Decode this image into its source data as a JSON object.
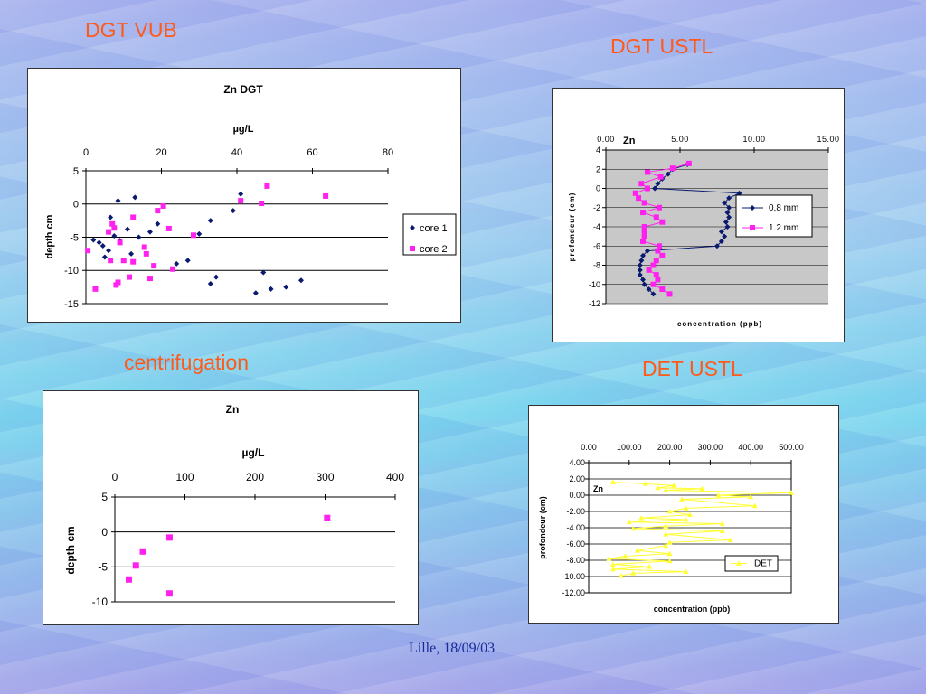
{
  "headings": {
    "dgt_vub": "DGT VUB",
    "dgt_ustl": "DGT USTL",
    "centrifugation": "centrifugation",
    "det_ustl": "DET USTL"
  },
  "footer": "Lille, 18/09/03",
  "colors": {
    "core1": "#0a1a6e",
    "core2": "#ff22ee",
    "det": "#ffff33",
    "heading": "#ff5a1a"
  },
  "chart_data": [
    {
      "id": "zn-dgt-vub",
      "type": "scatter",
      "title": "Zn DGT",
      "xlabel": "µg/L",
      "ylabel": "depth cm",
      "xlim": [
        0,
        80
      ],
      "ylim": [
        -15,
        5
      ],
      "x_ticks": [
        "0",
        "20",
        "40",
        "60",
        "80"
      ],
      "y_ticks": [
        "5",
        "0",
        "-5",
        "-10",
        "-15"
      ],
      "x_axis_position": "top",
      "legend": "right",
      "series": [
        {
          "name": "core 1",
          "marker": "diamond",
          "points": [
            [
              2,
              -5.4
            ],
            [
              3.5,
              -5.8
            ],
            [
              4.5,
              -6.3
            ],
            [
              5,
              -8
            ],
            [
              6,
              -7
            ],
            [
              6.5,
              -2
            ],
            [
              7.5,
              -4.8
            ],
            [
              8.5,
              0.5
            ],
            [
              9,
              -5.5
            ],
            [
              11,
              -3.8
            ],
            [
              12,
              -7.5
            ],
            [
              13,
              1
            ],
            [
              14,
              -5
            ],
            [
              17,
              -4.2
            ],
            [
              19,
              -3
            ],
            [
              24,
              -9
            ],
            [
              27,
              -8.5
            ],
            [
              30,
              -4.5
            ],
            [
              33,
              -2.5
            ],
            [
              33,
              -12
            ],
            [
              34.5,
              -11
            ],
            [
              39,
              -1
            ],
            [
              41,
              1.5
            ],
            [
              47,
              -10.3
            ],
            [
              45,
              -13.4
            ],
            [
              49,
              -12.8
            ],
            [
              53,
              -12.5
            ],
            [
              57,
              -11.5
            ]
          ]
        },
        {
          "name": "core 2",
          "marker": "square",
          "points": [
            [
              0.5,
              -7
            ],
            [
              2.5,
              -12.8
            ],
            [
              6,
              -4.2
            ],
            [
              6.5,
              -8.5
            ],
            [
              7,
              -3
            ],
            [
              7.5,
              -3.6
            ],
            [
              8,
              -12.2
            ],
            [
              8.5,
              -11.8
            ],
            [
              9,
              -5.8
            ],
            [
              10,
              -8.5
            ],
            [
              11.5,
              -11
            ],
            [
              12.5,
              -8.7
            ],
            [
              12.5,
              -2
            ],
            [
              15.5,
              -6.5
            ],
            [
              16,
              -7.5
            ],
            [
              17,
              -11.2
            ],
            [
              18,
              -9.3
            ],
            [
              19,
              -1
            ],
            [
              20.5,
              -0.3
            ],
            [
              22,
              -3.7
            ],
            [
              23,
              -9.8
            ],
            [
              28.5,
              -4.7
            ],
            [
              41,
              0.5
            ],
            [
              46.5,
              0.1
            ],
            [
              48,
              2.7
            ],
            [
              63.5,
              1.2
            ]
          ]
        }
      ]
    },
    {
      "id": "zn-dgt-ustl",
      "type": "line",
      "title": "Zn",
      "xlabel": "concentration (ppb)",
      "ylabel": "profondeur (cm)",
      "xlim": [
        0,
        15
      ],
      "ylim": [
        -12,
        4
      ],
      "x_ticks": [
        "0.00",
        "5.00",
        "10.00",
        "15.00"
      ],
      "y_ticks": [
        "4",
        "2",
        "0",
        "-2",
        "-4",
        "-6",
        "-8",
        "-10",
        "-12"
      ],
      "x_axis_position": "top",
      "legend": "right",
      "series": [
        {
          "name": "0,8 mm",
          "marker": "diamond",
          "points": [
            [
              5.5,
              2.5
            ],
            [
              4.5,
              2
            ],
            [
              4.2,
              1.5
            ],
            [
              3.8,
              1
            ],
            [
              3.5,
              0.5
            ],
            [
              3.3,
              0
            ],
            [
              9,
              -0.5
            ],
            [
              8.3,
              -1
            ],
            [
              8,
              -1.5
            ],
            [
              8.3,
              -2
            ],
            [
              8.2,
              -2.5
            ],
            [
              8.3,
              -3
            ],
            [
              8.1,
              -3.5
            ],
            [
              8.2,
              -4
            ],
            [
              7.8,
              -4.5
            ],
            [
              8,
              -5
            ],
            [
              7.8,
              -5.5
            ],
            [
              7.5,
              -6
            ],
            [
              2.8,
              -6.5
            ],
            [
              2.5,
              -7
            ],
            [
              2.4,
              -7.5
            ],
            [
              2.3,
              -8
            ],
            [
              2.3,
              -8.5
            ],
            [
              2.3,
              -9
            ],
            [
              2.5,
              -9.5
            ],
            [
              2.6,
              -10
            ],
            [
              2.9,
              -10.5
            ],
            [
              3.2,
              -11
            ]
          ]
        },
        {
          "name": "1.2 mm",
          "marker": "square",
          "points": [
            [
              5.6,
              2.6
            ],
            [
              4.5,
              2.1
            ],
            [
              2.8,
              1.7
            ],
            [
              3.7,
              1.2
            ],
            [
              2.4,
              0.5
            ],
            [
              2.8,
              0
            ],
            [
              2,
              -0.5
            ],
            [
              2.2,
              -1
            ],
            [
              2.6,
              -1.5
            ],
            [
              3.6,
              -2
            ],
            [
              2.5,
              -2.5
            ],
            [
              3.4,
              -3
            ],
            [
              3.8,
              -3.5
            ],
            [
              2.6,
              -4
            ],
            [
              2.6,
              -4.5
            ],
            [
              2.6,
              -5
            ],
            [
              2.5,
              -5.5
            ],
            [
              3.6,
              -6
            ],
            [
              3.5,
              -6.5
            ],
            [
              3.8,
              -7
            ],
            [
              3.4,
              -7.5
            ],
            [
              3.2,
              -8
            ],
            [
              2.9,
              -8.5
            ],
            [
              3.4,
              -9
            ],
            [
              3.5,
              -9.5
            ],
            [
              3.2,
              -10
            ],
            [
              3.8,
              -10.5
            ],
            [
              4.3,
              -11
            ]
          ]
        }
      ]
    },
    {
      "id": "zn-centrifugation",
      "type": "scatter",
      "title": "Zn",
      "xlabel": "µg/L",
      "ylabel": "depth cm",
      "xlim": [
        0,
        400
      ],
      "ylim": [
        -10,
        5
      ],
      "x_ticks": [
        "0",
        "100",
        "200",
        "300",
        "400"
      ],
      "y_ticks": [
        "5",
        "0",
        "-5",
        "-10"
      ],
      "x_axis_position": "top",
      "series": [
        {
          "name": "",
          "marker": "square",
          "points": [
            [
              20,
              -6.8
            ],
            [
              30,
              -4.8
            ],
            [
              40,
              -2.8
            ],
            [
              78,
              -0.8
            ],
            [
              78,
              -8.8
            ],
            [
              303,
              2
            ]
          ]
        }
      ]
    },
    {
      "id": "zn-det-ustl",
      "type": "line",
      "title": "Zn",
      "xlabel": "concentration (ppb)",
      "ylabel": "profondeur (cm)",
      "xlim": [
        0,
        500
      ],
      "ylim": [
        -12,
        4
      ],
      "x_ticks": [
        "0.00",
        "100.00",
        "200.00",
        "300.00",
        "400.00",
        "500.00"
      ],
      "y_ticks": [
        "4.00",
        "2.00",
        "0.00",
        "-2.00",
        "-4.00",
        "-6.00",
        "-8.00",
        "-10.00",
        "-12.00"
      ],
      "x_axis_position": "top",
      "legend": "right",
      "series": [
        {
          "name": "DET",
          "marker": "triangle",
          "points": [
            [
              60,
              1.6
            ],
            [
              140,
              1.4
            ],
            [
              210,
              1.2
            ],
            [
              170,
              0.9
            ],
            [
              280,
              0.8
            ],
            [
              190,
              0.6
            ],
            [
              500,
              0.3
            ],
            [
              320,
              0
            ],
            [
              400,
              -0.2
            ],
            [
              230,
              -0.5
            ],
            [
              410,
              -1.3
            ],
            [
              240,
              -1.6
            ],
            [
              200,
              -2
            ],
            [
              250,
              -2.4
            ],
            [
              130,
              -2.8
            ],
            [
              240,
              -3
            ],
            [
              100,
              -3.3
            ],
            [
              330,
              -3.5
            ],
            [
              190,
              -3.8
            ],
            [
              110,
              -4.1
            ],
            [
              330,
              -4.4
            ],
            [
              190,
              -4.8
            ],
            [
              350,
              -5.5
            ],
            [
              200,
              -5.8
            ],
            [
              190,
              -6.2
            ],
            [
              120,
              -6.8
            ],
            [
              200,
              -7.2
            ],
            [
              90,
              -7.5
            ],
            [
              50,
              -7.8
            ],
            [
              200,
              -8.1
            ],
            [
              60,
              -8.5
            ],
            [
              150,
              -8.8
            ],
            [
              60,
              -9.1
            ],
            [
              240,
              -9.4
            ],
            [
              110,
              -9.6
            ],
            [
              80,
              -9.9
            ]
          ]
        }
      ]
    }
  ]
}
